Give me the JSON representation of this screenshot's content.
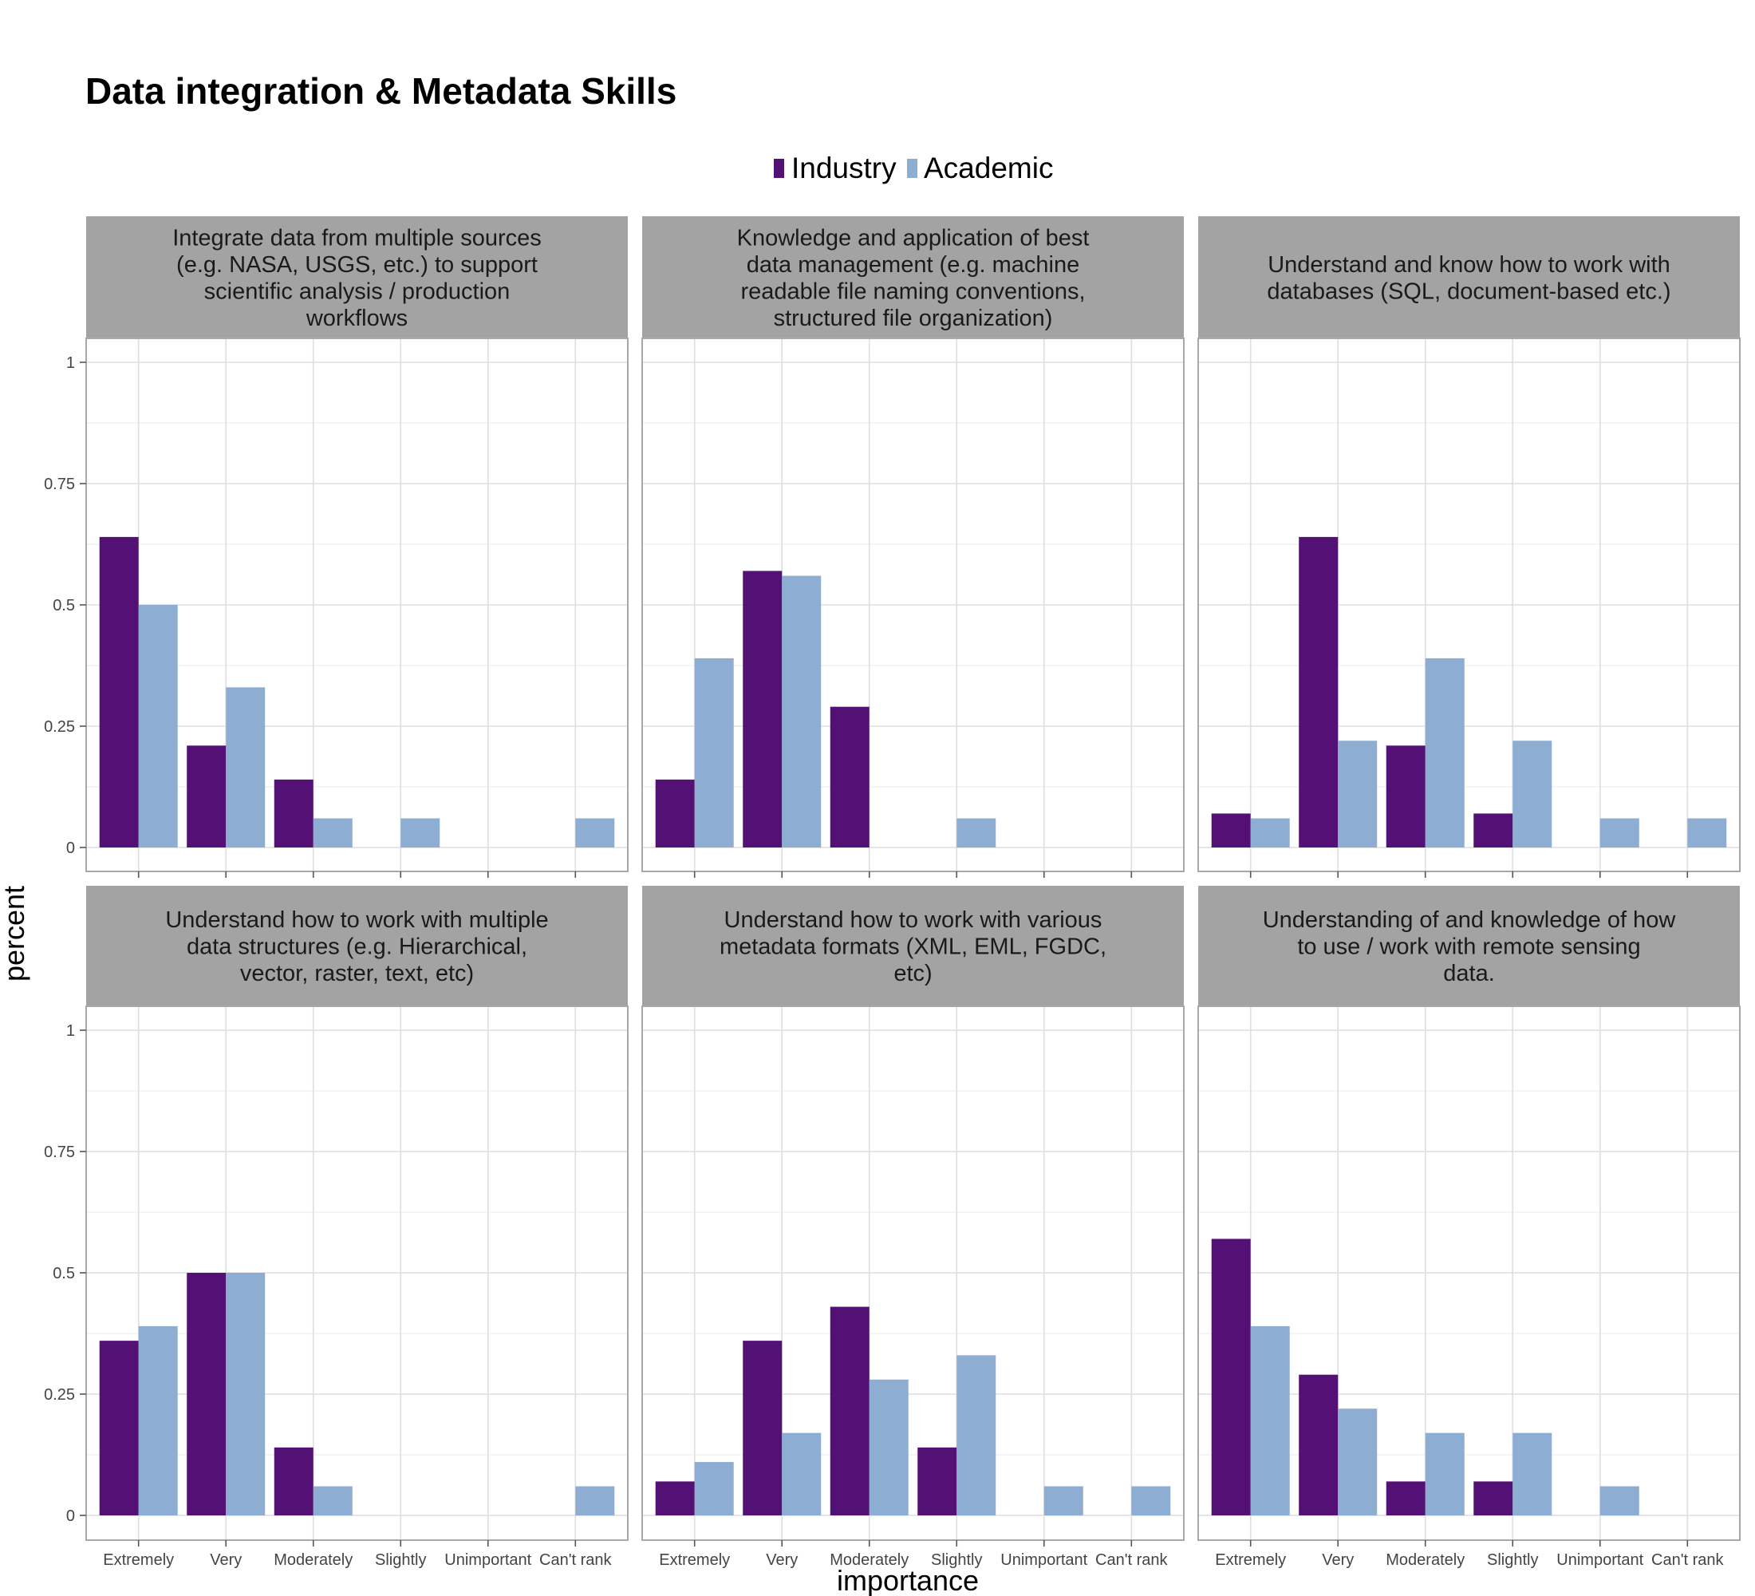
{
  "chart_data": {
    "type": "bar",
    "title": "Data integration & Metadata Skills",
    "xlabel": "importance",
    "ylabel": "percent",
    "ylim": [
      0,
      1
    ],
    "yticks": [
      {
        "value": 0,
        "label": "0"
      },
      {
        "value": 0.25,
        "label": "0.25"
      },
      {
        "value": 0.5,
        "label": "0.5"
      },
      {
        "value": 0.75,
        "label": "0.75"
      },
      {
        "value": 1,
        "label": "1"
      }
    ],
    "categories": [
      "Extremely",
      "Very",
      "Moderately",
      "Slightly",
      "Unimportant",
      "Can't rank"
    ],
    "legend": {
      "position": "top",
      "items": [
        {
          "name": "Industry",
          "color": "#531075"
        },
        {
          "name": "Academic",
          "color": "#8dadd2"
        }
      ]
    },
    "grid": true,
    "panels": [
      {
        "title_lines": [
          "Integrate data from multiple sources",
          "(e.g. NASA, USGS, etc.) to support",
          "scientific analysis / production",
          "workflows"
        ],
        "series": [
          {
            "name": "Industry",
            "values": [
              0.64,
              0.21,
              0.14,
              0,
              0,
              0
            ]
          },
          {
            "name": "Academic",
            "values": [
              0.5,
              0.33,
              0.06,
              0.06,
              0,
              0.06
            ]
          }
        ]
      },
      {
        "title_lines": [
          "Knowledge and application of best",
          "data management (e.g. machine",
          "readable file naming conventions,",
          "structured file organization)"
        ],
        "series": [
          {
            "name": "Industry",
            "values": [
              0.14,
              0.57,
              0.29,
              0,
              0,
              0
            ]
          },
          {
            "name": "Academic",
            "values": [
              0.39,
              0.56,
              0,
              0.06,
              0,
              0
            ]
          }
        ]
      },
      {
        "title_lines": [
          "Understand and know how to work with",
          "databases (SQL, document-based etc.)"
        ],
        "series": [
          {
            "name": "Industry",
            "values": [
              0.07,
              0.64,
              0.21,
              0.07,
              0,
              0
            ]
          },
          {
            "name": "Academic",
            "values": [
              0.06,
              0.22,
              0.39,
              0.22,
              0.06,
              0.06
            ]
          }
        ]
      },
      {
        "title_lines": [
          "Understand how to work with multiple",
          "data structures (e.g. Hierarchical,",
          "vector, raster, text, etc)"
        ],
        "series": [
          {
            "name": "Industry",
            "values": [
              0.36,
              0.5,
              0.14,
              0,
              0,
              0
            ]
          },
          {
            "name": "Academic",
            "values": [
              0.39,
              0.5,
              0.06,
              0,
              0,
              0.06
            ]
          }
        ]
      },
      {
        "title_lines": [
          "Understand how to work with various",
          "metadata formats (XML, EML, FGDC,",
          "etc)"
        ],
        "series": [
          {
            "name": "Industry",
            "values": [
              0.07,
              0.36,
              0.43,
              0.14,
              0,
              0
            ]
          },
          {
            "name": "Academic",
            "values": [
              0.11,
              0.17,
              0.28,
              0.33,
              0.06,
              0.06
            ]
          }
        ]
      },
      {
        "title_lines": [
          "Understanding of and knowledge of how",
          "to use / work with remote sensing",
          "data."
        ],
        "series": [
          {
            "name": "Industry",
            "values": [
              0.57,
              0.29,
              0.07,
              0.07,
              0,
              0
            ]
          },
          {
            "name": "Academic",
            "values": [
              0.39,
              0.22,
              0.17,
              0.17,
              0.06,
              0
            ]
          }
        ]
      }
    ]
  }
}
